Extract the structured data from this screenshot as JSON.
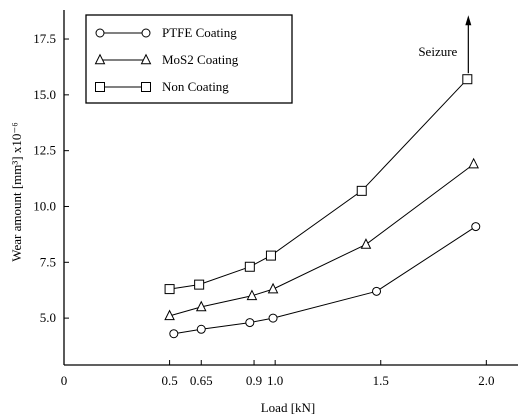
{
  "chart_data": {
    "type": "line",
    "xlabel": "Load [kN]",
    "ylabel": "Wear amount [mm³] x10⁻⁶",
    "xlim": [
      0,
      2.15
    ],
    "ylim": [
      2.9,
      18.8
    ],
    "x_ticks": [
      0,
      0.5,
      0.65,
      0.9,
      1.0,
      1.5,
      2.0
    ],
    "x_tick_labels": [
      "0",
      "0.5",
      "0.65",
      "0.9",
      "1.0",
      "1.5",
      "2.0"
    ],
    "y_ticks": [
      5.0,
      7.5,
      10.0,
      12.5,
      15.0,
      17.5
    ],
    "y_tick_labels": [
      "5.0",
      "7.5",
      "10.0",
      "12.5",
      "15.0",
      "17.5"
    ],
    "grid": false,
    "legend_position": "top-left",
    "series": [
      {
        "name": "PTFE Coating",
        "marker": "circle",
        "x": [
          0.52,
          0.65,
          0.88,
          0.99,
          1.48,
          1.95
        ],
        "y": [
          4.3,
          4.5,
          4.8,
          5.0,
          6.2,
          9.1
        ]
      },
      {
        "name": "MoS2 Coating",
        "marker": "triangle",
        "x": [
          0.5,
          0.65,
          0.89,
          0.99,
          1.43,
          1.94
        ],
        "y": [
          5.1,
          5.5,
          6.0,
          6.3,
          8.3,
          11.9
        ]
      },
      {
        "name": "Non Coating",
        "marker": "square",
        "x": [
          0.5,
          0.64,
          0.88,
          0.98,
          1.41,
          1.91
        ],
        "y": [
          6.3,
          6.5,
          7.3,
          7.8,
          10.7,
          15.7
        ]
      }
    ],
    "annotations": [
      {
        "text": "Seizure",
        "x": 1.91,
        "y": 15.7
      }
    ]
  }
}
